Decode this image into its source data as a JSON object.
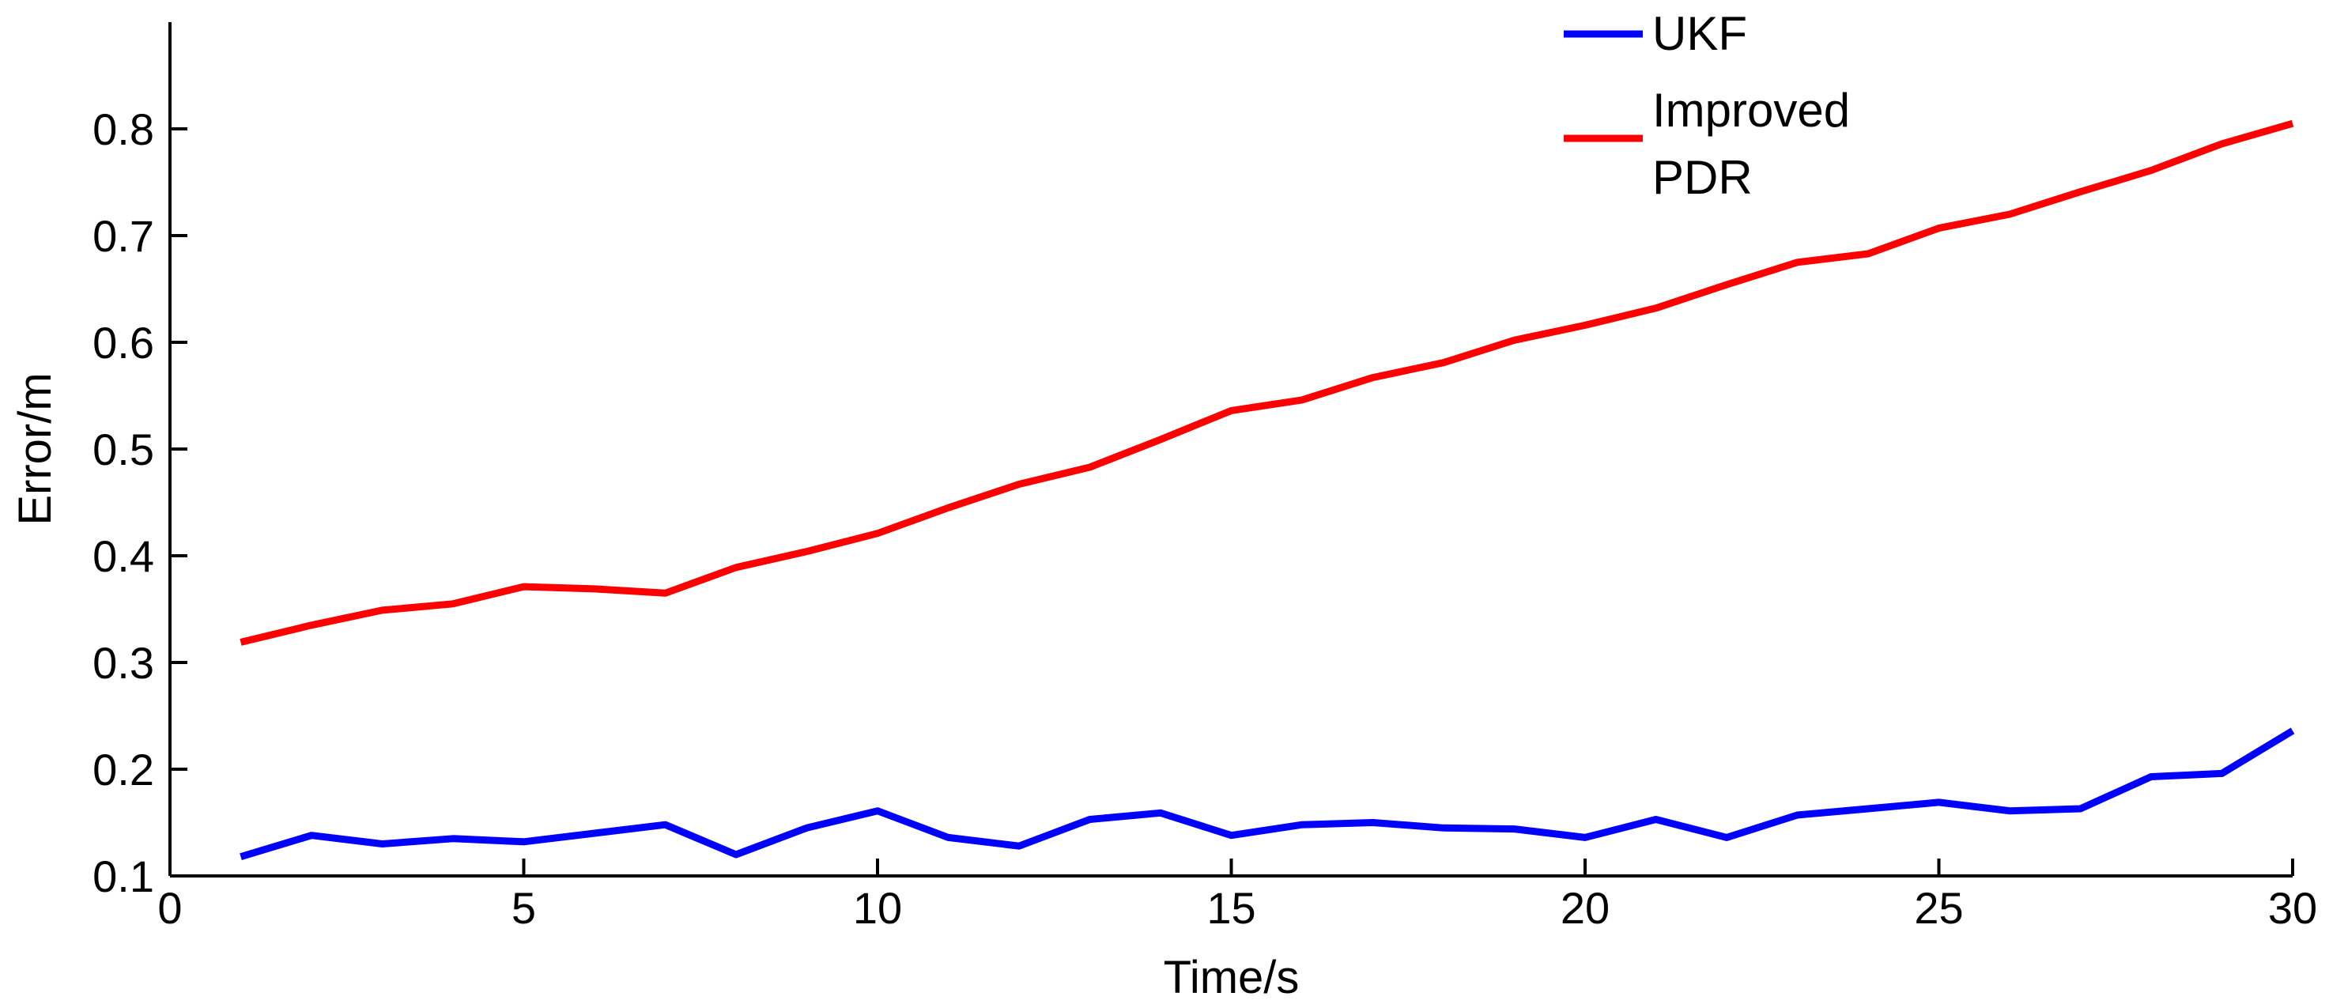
{
  "chart_data": {
    "type": "line",
    "title": "",
    "xlabel": "Time/s",
    "ylabel": "Error/m",
    "xlim": [
      0,
      30
    ],
    "ylim": [
      0.1,
      0.9
    ],
    "xticks": [
      0,
      5,
      10,
      15,
      20,
      25,
      30
    ],
    "xtick_labels": [
      "0",
      "5",
      "10",
      "15",
      "20",
      "25",
      "30"
    ],
    "yticks": [
      0.1,
      0.2,
      0.3,
      0.4,
      0.5,
      0.6,
      0.7,
      0.8
    ],
    "ytick_labels": [
      "0.1",
      "0.2",
      "0.3",
      "0.4",
      "0.5",
      "0.6",
      "0.7",
      "0.8"
    ],
    "grid": false,
    "legend_position": "top-right",
    "x": [
      1,
      2,
      3,
      4,
      5,
      6,
      7,
      8,
      9,
      10,
      11,
      12,
      13,
      14,
      15,
      16,
      17,
      18,
      19,
      20,
      21,
      22,
      23,
      24,
      25,
      26,
      27,
      28,
      29,
      30
    ],
    "series": [
      {
        "name": "UKF",
        "legend_lines": [
          "UKF"
        ],
        "color": "#0000ff",
        "values": [
          0.118,
          0.138,
          0.13,
          0.135,
          0.132,
          0.14,
          0.148,
          0.12,
          0.145,
          0.161,
          0.136,
          0.128,
          0.153,
          0.159,
          0.138,
          0.148,
          0.15,
          0.145,
          0.144,
          0.136,
          0.153,
          0.136,
          0.157,
          0.163,
          0.169,
          0.161,
          0.163,
          0.193,
          0.196,
          0.236
        ]
      },
      {
        "name": "Improved PDR",
        "legend_lines": [
          "Improved",
          "PDR"
        ],
        "color": "#ff0000",
        "values": [
          0.319,
          0.335,
          0.349,
          0.355,
          0.371,
          0.369,
          0.365,
          0.389,
          0.404,
          0.421,
          0.445,
          0.467,
          0.483,
          0.509,
          0.536,
          0.546,
          0.567,
          0.581,
          0.602,
          0.616,
          0.632,
          0.654,
          0.675,
          0.683,
          0.707,
          0.72,
          0.741,
          0.761,
          0.786,
          0.805
        ]
      }
    ]
  }
}
